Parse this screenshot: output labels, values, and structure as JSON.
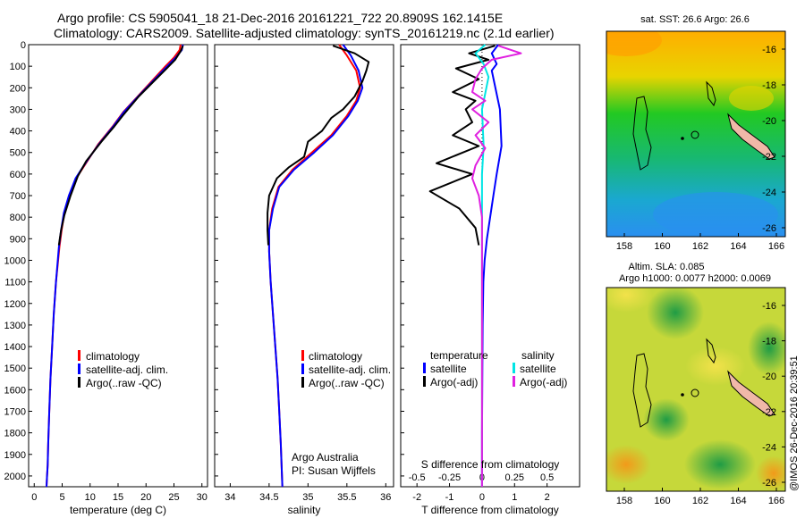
{
  "title_line1": "Argo profile: CS 5905041_18 21-Dec-2016 20161221_722 20.8909S 162.1415E",
  "title_line2": "Climatology: CARS2009. Satellite-adjusted climatology: synTS_20161219.nc (2.1d earlier)",
  "credit": "Argo Australia",
  "pi": "PI: Susan Wijffels",
  "stamp": "@IMOS 26-Dec-2016 20:39:51",
  "colors": {
    "climatology": "#ff0000",
    "satellite": "#0000ff",
    "argo": "#000000",
    "sat_salinity": "#00e5e5",
    "argo_salinity": "#e020e0",
    "coast": "#000000",
    "land": "#f0b8a8"
  },
  "map_top": {
    "title": "sat. SST: 26.6 Argo: 26.6",
    "xticks": [
      "158",
      "160",
      "162",
      "164",
      "166"
    ],
    "yticks": [
      "-16",
      "-18",
      "-20",
      "-22",
      "-24",
      "-26"
    ]
  },
  "map_bottom": {
    "title1": "Altim. SLA: 0.085",
    "title2": "Argo h1000: 0.0077 h2000: 0.0069",
    "xticks": [
      "158",
      "160",
      "162",
      "164",
      "166"
    ],
    "yticks": [
      "-16",
      "-18",
      "-20",
      "-22",
      "-24",
      "-26"
    ]
  },
  "chart_data": [
    {
      "type": "line",
      "xlabel": "temperature (deg C)",
      "ylim": [
        2050,
        0
      ],
      "xlim": [
        -1,
        31
      ],
      "xticks": [
        "0",
        "5",
        "10",
        "15",
        "20",
        "25",
        "30"
      ],
      "yticks": [
        "0",
        "100",
        "200",
        "300",
        "400",
        "500",
        "600",
        "700",
        "800",
        "900",
        "1000",
        "1100",
        "1200",
        "1300",
        "1400",
        "1500",
        "1600",
        "1700",
        "1800",
        "1900",
        "2000"
      ],
      "legend": [
        "climatology",
        "satellite-adj. clim.",
        "Argo(..raw -QC)"
      ],
      "series": [
        {
          "name": "climatology",
          "color": "red",
          "x": [
            26.2,
            26.0,
            25.0,
            23.5,
            21.0,
            18.5,
            16.0,
            14.0,
            11.5,
            9.5,
            7.5,
            6.3,
            5.4,
            4.9,
            4.5,
            3.9,
            3.5,
            3.2,
            2.9,
            2.7,
            2.5,
            2.4,
            2.3,
            2.2
          ],
          "y": [
            0,
            25,
            60,
            100,
            170,
            240,
            310,
            380,
            460,
            540,
            620,
            700,
            780,
            860,
            940,
            1100,
            1250,
            1400,
            1550,
            1700,
            1850,
            1950,
            2000,
            2050
          ]
        },
        {
          "name": "satellite-adj. clim.",
          "color": "blue",
          "x": [
            26.6,
            26.4,
            25.3,
            23.8,
            21.2,
            18.6,
            16.1,
            14.1,
            11.6,
            9.4,
            7.4,
            6.2,
            5.3,
            4.8,
            4.4,
            3.9,
            3.5,
            3.2,
            2.9,
            2.7,
            2.5,
            2.4,
            2.3,
            2.2
          ],
          "y": [
            0,
            25,
            60,
            100,
            170,
            240,
            310,
            380,
            460,
            540,
            620,
            700,
            780,
            860,
            940,
            1100,
            1250,
            1400,
            1550,
            1700,
            1850,
            1950,
            2000,
            2050
          ]
        },
        {
          "name": "Argo(..raw -QC)",
          "color": "black",
          "x": [
            26.6,
            26.2,
            25.2,
            23.7,
            21.4,
            18.7,
            15.8,
            14.3,
            12.0,
            9.3,
            7.8,
            6.5,
            5.4,
            4.8,
            4.4
          ],
          "y": [
            5,
            30,
            70,
            110,
            170,
            240,
            330,
            380,
            450,
            540,
            610,
            700,
            790,
            860,
            930
          ]
        }
      ]
    },
    {
      "type": "line",
      "xlabel": "salinity",
      "ylim": [
        2050,
        0
      ],
      "xlim": [
        33.8,
        36.1
      ],
      "xticks": [
        "34",
        "34.5",
        "35",
        "35.5",
        "36"
      ],
      "legend": [
        "climatology",
        "satellite-adj. clim.",
        "Argo(..raw -QC)"
      ],
      "series": [
        {
          "name": "climatology",
          "color": "red",
          "x": [
            35.4,
            35.5,
            35.62,
            35.67,
            35.62,
            35.5,
            35.3,
            35.05,
            34.8,
            34.62,
            34.54,
            34.5,
            34.5,
            34.52,
            34.55,
            34.58,
            34.61,
            34.63,
            34.65,
            34.66,
            34.67
          ],
          "y": [
            0,
            50,
            120,
            200,
            260,
            330,
            420,
            500,
            580,
            660,
            760,
            860,
            960,
            1100,
            1250,
            1400,
            1550,
            1700,
            1850,
            1950,
            2050
          ]
        },
        {
          "name": "satellite-adj. clim.",
          "color": "blue",
          "x": [
            35.45,
            35.55,
            35.65,
            35.7,
            35.64,
            35.52,
            35.32,
            35.08,
            34.82,
            34.63,
            34.55,
            34.5,
            34.5,
            34.52,
            34.55,
            34.58,
            34.61,
            34.63,
            34.65,
            34.66,
            34.67
          ],
          "y": [
            0,
            50,
            120,
            200,
            260,
            330,
            420,
            500,
            580,
            660,
            760,
            860,
            960,
            1100,
            1250,
            1400,
            1550,
            1700,
            1850,
            1950,
            2050
          ]
        },
        {
          "name": "Argo(..raw -QC)",
          "color": "black",
          "x": [
            35.32,
            35.6,
            35.78,
            35.75,
            35.7,
            35.6,
            35.45,
            35.3,
            35.18,
            35.0,
            34.95,
            34.75,
            34.6,
            34.5,
            34.48,
            34.48,
            34.49
          ],
          "y": [
            5,
            40,
            80,
            120,
            170,
            240,
            300,
            340,
            400,
            450,
            520,
            570,
            620,
            700,
            780,
            860,
            930
          ]
        }
      ]
    },
    {
      "type": "line",
      "xlabel": "T difference from climatology",
      "xlabel2": "S difference from climatology",
      "ylim": [
        2050,
        0
      ],
      "xlim": [
        -2.5,
        3.0
      ],
      "xticks": [
        "-2",
        "-1",
        "0",
        "1",
        "2"
      ],
      "xticks_top": [
        "-0.5",
        "-0.25",
        "0",
        "0.25",
        "0.5"
      ],
      "legend": [
        "temperature",
        "satellite",
        "Argo(-adj)",
        "salinity",
        "satellite",
        "Argo(-adj)"
      ],
      "series": [
        {
          "name": "satellite",
          "color": "blue",
          "x": [
            0.5,
            0.3,
            0.45,
            0.3,
            0.55,
            0.6,
            0.45,
            0.35,
            0.25,
            0.15,
            0.08,
            0.04,
            0.02,
            0.01,
            0.0,
            0.0
          ],
          "y": [
            0,
            40,
            90,
            120,
            300,
            470,
            600,
            700,
            800,
            900,
            1000,
            1100,
            1300,
            1500,
            1800,
            2050
          ]
        },
        {
          "name": "Argo(-adj)",
          "color": "black",
          "x": [
            0.4,
            -0.4,
            0.2,
            -0.8,
            -0.1,
            -0.9,
            -0.2,
            -0.5,
            -0.3,
            -0.9,
            -0.1,
            -1.4,
            -0.3,
            -1.6,
            -0.7,
            -0.2,
            -0.1
          ],
          "y": [
            5,
            40,
            70,
            110,
            160,
            220,
            260,
            300,
            360,
            420,
            470,
            550,
            600,
            680,
            760,
            850,
            930
          ]
        },
        {
          "name": "satellite",
          "color": "cyan",
          "x": [
            0.1,
            -0.2,
            0.05,
            0.2,
            0.0,
            0.05,
            0.0,
            0.0,
            0.0,
            0.0,
            0.0,
            0.0,
            0.0,
            0.0,
            0.0,
            0.0
          ],
          "y": [
            0,
            40,
            90,
            150,
            300,
            470,
            600,
            700,
            800,
            900,
            1000,
            1100,
            1300,
            1500,
            1800,
            2050
          ]
        },
        {
          "name": "Argo(-adj)",
          "color": "magenta",
          "x": [
            0.5,
            1.2,
            0.3,
            0.0,
            -0.2,
            -0.3,
            0.1,
            -0.3,
            0.2,
            -0.2,
            0.1,
            -0.2,
            -0.3,
            -0.1,
            0.0,
            0.0,
            0.0
          ],
          "y": [
            5,
            40,
            70,
            110,
            160,
            220,
            260,
            300,
            360,
            420,
            480,
            560,
            620,
            700,
            800,
            900,
            2050
          ]
        }
      ]
    }
  ]
}
